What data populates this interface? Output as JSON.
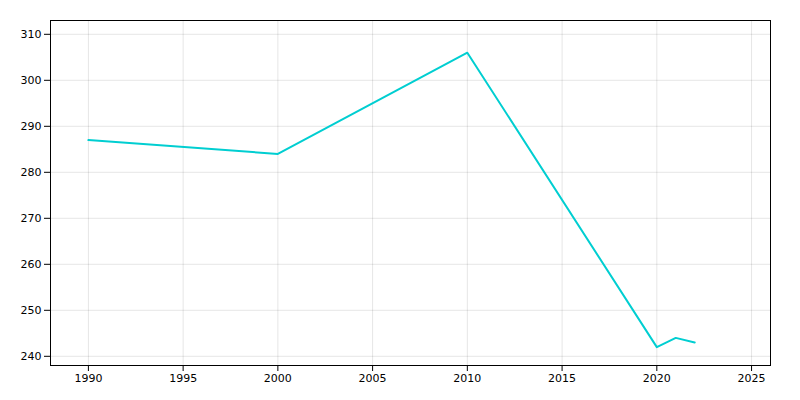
{
  "chart_data": {
    "type": "line",
    "x": [
      1990,
      2000,
      2010,
      2020,
      2021,
      2022
    ],
    "values": [
      287,
      284,
      306,
      242,
      244,
      243
    ],
    "color": "#00CED1",
    "xlim": [
      1988,
      2026
    ],
    "ylim": [
      238,
      313
    ],
    "xticks": [
      1990,
      1995,
      2000,
      2005,
      2010,
      2015,
      2020,
      2025
    ],
    "yticks": [
      240,
      250,
      260,
      270,
      280,
      290,
      300,
      310
    ],
    "grid": true
  }
}
